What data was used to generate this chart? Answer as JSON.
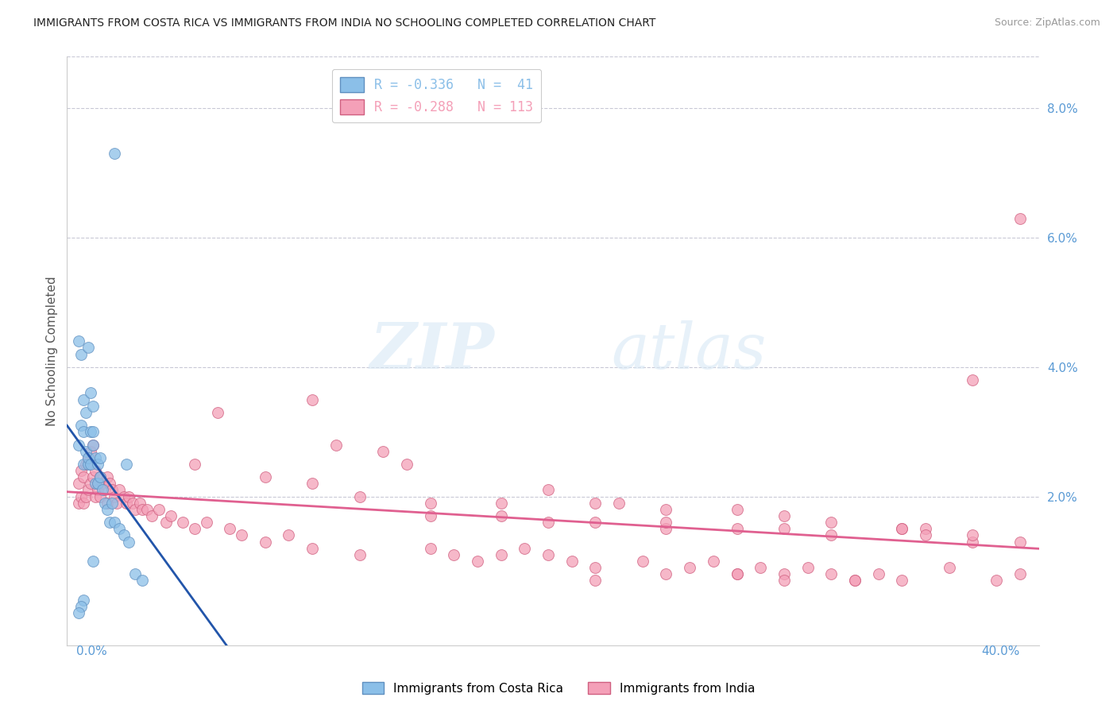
{
  "title": "IMMIGRANTS FROM COSTA RICA VS IMMIGRANTS FROM INDIA NO SCHOOLING COMPLETED CORRELATION CHART",
  "source": "Source: ZipAtlas.com",
  "ylabel": "No Schooling Completed",
  "right_ytick_vals": [
    0.08,
    0.06,
    0.04,
    0.02
  ],
  "right_ytick_labels": [
    "8.0%",
    "6.0%",
    "4.0%",
    "2.0%"
  ],
  "xlim": [
    -0.004,
    0.408
  ],
  "ylim": [
    -0.003,
    0.088
  ],
  "legend_entries": [
    {
      "label": "R = -0.336   N =  41",
      "color": "#8BBFE8"
    },
    {
      "label": "R = -0.288   N = 113",
      "color": "#F4A0B8"
    }
  ],
  "costa_rica_color": "#8BBFE8",
  "costa_rica_edge": "#6090C0",
  "india_color": "#F4A0B8",
  "india_edge": "#D06080",
  "trendline_costa_rica_color": "#2255AA",
  "trendline_india_color": "#E06090",
  "watermark_zip": "ZIP",
  "watermark_atlas": "atlas",
  "cr_x": [
    0.001,
    0.002,
    0.001,
    0.003,
    0.002,
    0.003,
    0.004,
    0.003,
    0.005,
    0.004,
    0.005,
    0.006,
    0.005,
    0.006,
    0.007,
    0.006,
    0.007,
    0.008,
    0.007,
    0.008,
    0.009,
    0.009,
    0.01,
    0.011,
    0.01,
    0.012,
    0.013,
    0.015,
    0.014,
    0.016,
    0.018,
    0.02,
    0.022,
    0.025,
    0.028,
    0.016,
    0.021,
    0.007,
    0.003,
    0.002,
    0.001
  ],
  "cr_y": [
    0.028,
    0.031,
    0.044,
    0.03,
    0.042,
    0.025,
    0.027,
    0.035,
    0.025,
    0.033,
    0.026,
    0.036,
    0.043,
    0.03,
    0.028,
    0.025,
    0.034,
    0.026,
    0.03,
    0.022,
    0.025,
    0.022,
    0.023,
    0.021,
    0.026,
    0.019,
    0.018,
    0.019,
    0.016,
    0.016,
    0.015,
    0.014,
    0.013,
    0.008,
    0.007,
    0.073,
    0.025,
    0.01,
    0.004,
    0.003,
    0.002
  ],
  "ind_x": [
    0.001,
    0.001,
    0.002,
    0.002,
    0.003,
    0.003,
    0.004,
    0.004,
    0.005,
    0.005,
    0.006,
    0.006,
    0.007,
    0.007,
    0.008,
    0.008,
    0.009,
    0.009,
    0.01,
    0.01,
    0.011,
    0.012,
    0.013,
    0.013,
    0.014,
    0.015,
    0.016,
    0.017,
    0.018,
    0.02,
    0.021,
    0.022,
    0.024,
    0.025,
    0.027,
    0.028,
    0.03,
    0.032,
    0.035,
    0.038,
    0.04,
    0.045,
    0.05,
    0.055,
    0.06,
    0.065,
    0.07,
    0.08,
    0.09,
    0.1,
    0.11,
    0.12,
    0.13,
    0.14,
    0.15,
    0.16,
    0.17,
    0.18,
    0.19,
    0.2,
    0.21,
    0.22,
    0.23,
    0.24,
    0.25,
    0.26,
    0.27,
    0.28,
    0.29,
    0.3,
    0.31,
    0.32,
    0.33,
    0.34,
    0.35,
    0.36,
    0.37,
    0.38,
    0.39,
    0.4,
    0.05,
    0.08,
    0.1,
    0.12,
    0.15,
    0.18,
    0.2,
    0.22,
    0.25,
    0.28,
    0.3,
    0.32,
    0.35,
    0.1,
    0.15,
    0.18,
    0.2,
    0.22,
    0.25,
    0.28,
    0.3,
    0.32,
    0.35,
    0.38,
    0.4,
    0.36,
    0.38,
    0.4,
    0.33,
    0.3,
    0.28,
    0.25,
    0.22
  ],
  "ind_y": [
    0.022,
    0.019,
    0.024,
    0.02,
    0.023,
    0.019,
    0.025,
    0.02,
    0.026,
    0.021,
    0.027,
    0.022,
    0.028,
    0.023,
    0.024,
    0.02,
    0.022,
    0.021,
    0.023,
    0.02,
    0.022,
    0.021,
    0.023,
    0.019,
    0.022,
    0.021,
    0.02,
    0.019,
    0.021,
    0.02,
    0.019,
    0.02,
    0.019,
    0.018,
    0.019,
    0.018,
    0.018,
    0.017,
    0.018,
    0.016,
    0.017,
    0.016,
    0.015,
    0.016,
    0.033,
    0.015,
    0.014,
    0.013,
    0.014,
    0.012,
    0.028,
    0.011,
    0.027,
    0.025,
    0.012,
    0.011,
    0.01,
    0.011,
    0.012,
    0.011,
    0.01,
    0.009,
    0.019,
    0.01,
    0.015,
    0.009,
    0.01,
    0.008,
    0.009,
    0.008,
    0.009,
    0.008,
    0.007,
    0.008,
    0.007,
    0.015,
    0.009,
    0.038,
    0.007,
    0.008,
    0.025,
    0.023,
    0.022,
    0.02,
    0.019,
    0.019,
    0.021,
    0.019,
    0.018,
    0.018,
    0.017,
    0.016,
    0.015,
    0.035,
    0.017,
    0.017,
    0.016,
    0.016,
    0.016,
    0.015,
    0.015,
    0.014,
    0.015,
    0.013,
    0.013,
    0.014,
    0.014,
    0.063,
    0.007,
    0.007,
    0.008,
    0.008,
    0.007
  ]
}
